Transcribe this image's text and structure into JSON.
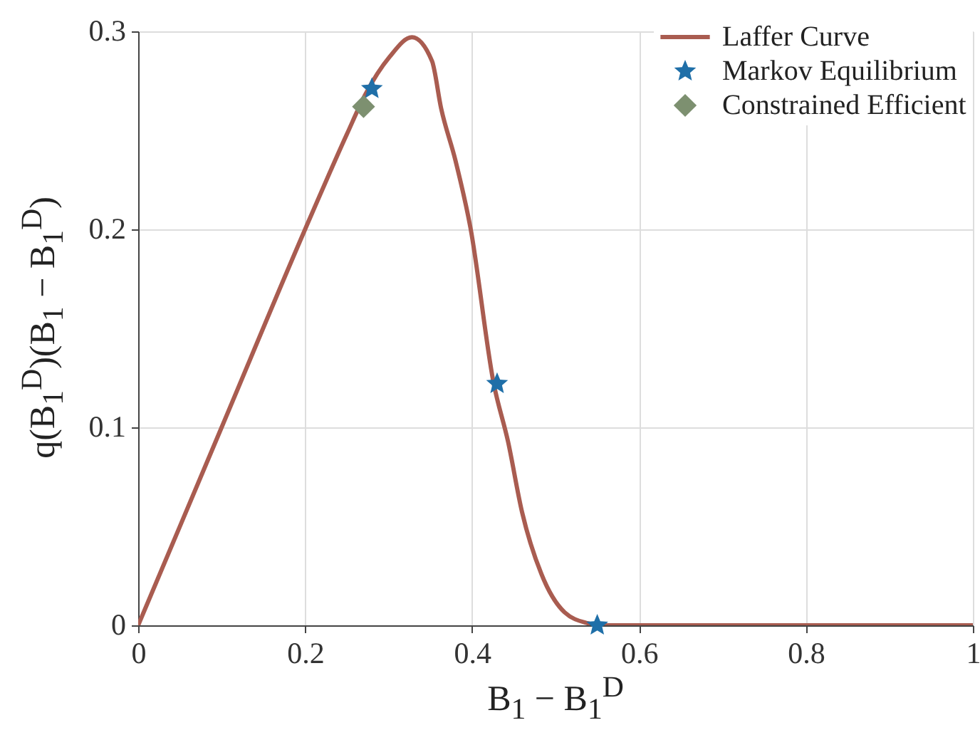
{
  "chart_data": {
    "type": "line",
    "xlabel": "B$_{1}$ − B$_{1}$$^{D}$",
    "ylabel": "q(B$_{1}$$^{D}$)(B$_{1}$ − B$_{1}$$^{D}$)",
    "xlim": [
      0,
      1
    ],
    "ylim": [
      0,
      0.3
    ],
    "xticks": [
      0,
      0.2,
      0.4,
      0.6,
      0.8,
      1
    ],
    "yticks": [
      0,
      0.1,
      0.2,
      0.3
    ],
    "grid": true,
    "legend": "top right",
    "series": [
      {
        "name": "Laffer Curve",
        "type": "line",
        "color": "#a95c50",
        "marker": "none",
        "x": [
          0,
          0.1,
          0.2,
          0.25,
          0.272,
          0.301,
          0.328,
          0.352,
          0.363,
          0.38,
          0.398,
          0.426,
          0.443,
          0.46,
          0.483,
          0.511,
          0.539,
          0.55,
          0.6,
          0.8,
          1
        ],
        "values": [
          0,
          0.1,
          0.2,
          0.248,
          0.268,
          0.287,
          0.297,
          0.285,
          0.261,
          0.235,
          0.201,
          0.122,
          0.093,
          0.057,
          0.026,
          0.0065,
          0.001,
          0,
          0,
          0,
          0
        ]
      },
      {
        "name": "Markov Equilibrium",
        "type": "scatter",
        "color": "#1f6fa8",
        "marker": "star",
        "x": [
          0.28,
          0.43,
          0.55
        ],
        "values": [
          0.271,
          0.122,
          0
        ]
      },
      {
        "name": "Constrained Efficient",
        "type": "scatter",
        "color": "#7d9070",
        "marker": "diamond",
        "x": [
          0.27
        ],
        "values": [
          0.262
        ]
      }
    ]
  }
}
